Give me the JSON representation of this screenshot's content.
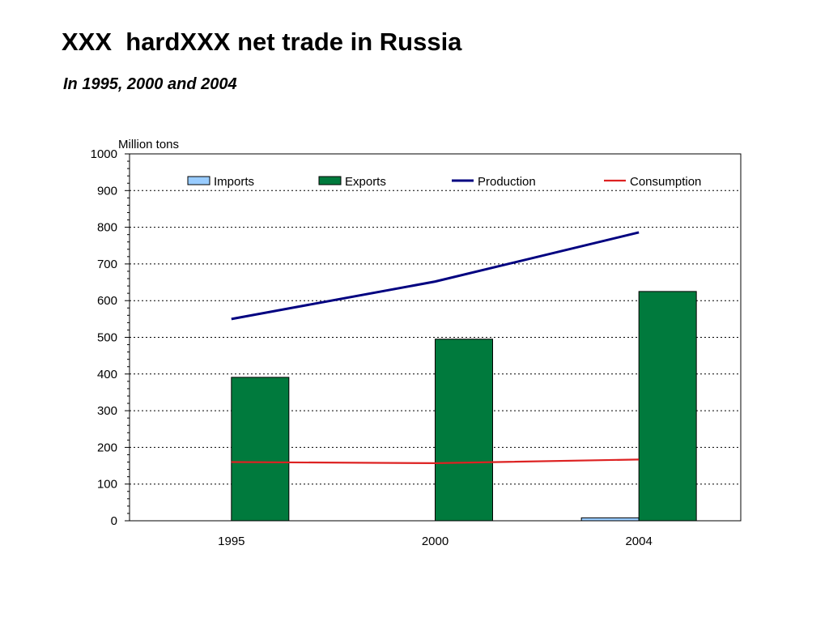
{
  "slide": {
    "title": "XXX  hardXXX net trade in Russia",
    "subtitle": "In 1995, 2000 and 2004"
  },
  "chart_data": {
    "type": "bar",
    "ylabel": "Million tons",
    "ylim": [
      0,
      1000
    ],
    "y_major_step": 100,
    "y_minor_step": 20,
    "grid": true,
    "legend_position": "top",
    "categories": [
      "1995",
      "2000",
      "2004"
    ],
    "series": [
      {
        "name": "Imports",
        "kind": "bar",
        "color": "#99ccff",
        "values": [
          0,
          0,
          8
        ]
      },
      {
        "name": "Exports",
        "kind": "bar",
        "color": "#007a3d",
        "values": [
          391,
          495,
          625
        ]
      },
      {
        "name": "Production",
        "kind": "line",
        "color": "#000080",
        "values": [
          550,
          652,
          786
        ]
      },
      {
        "name": "Consumption",
        "kind": "line",
        "color": "#dd2222",
        "values": [
          160,
          157,
          167
        ]
      }
    ]
  }
}
